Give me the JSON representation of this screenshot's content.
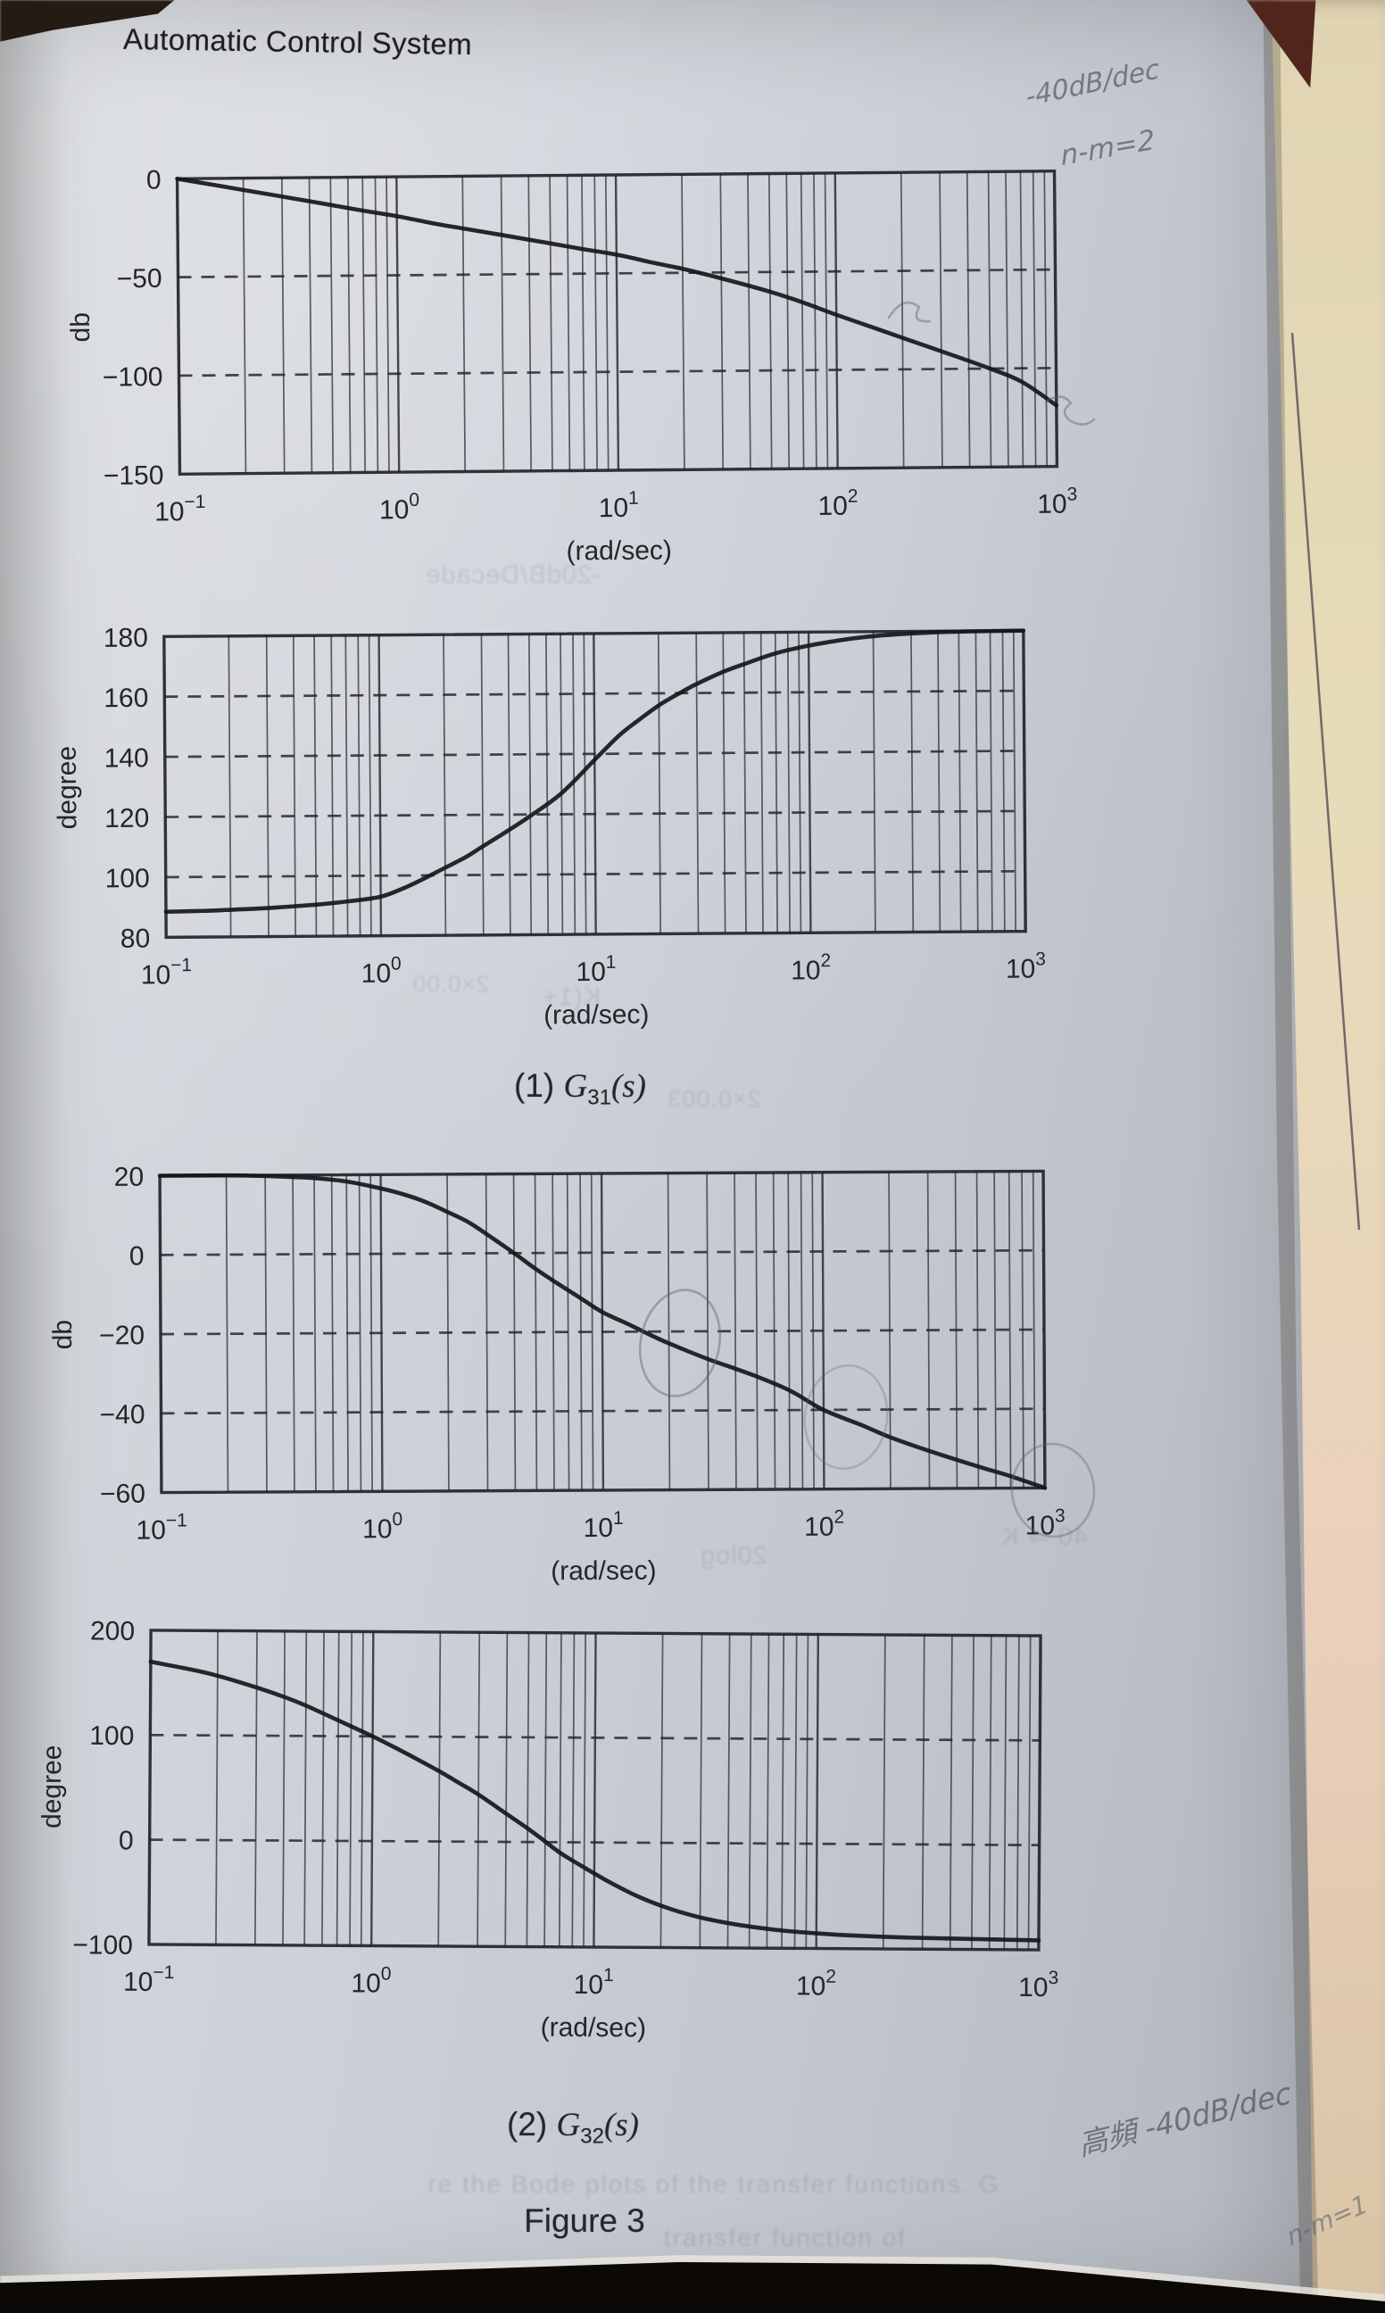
{
  "page": {
    "header": "Automatic Control System",
    "figure_label": "Figure 3",
    "captions": [
      {
        "prefix": "(1) ",
        "symbol": "G",
        "subscript": "31",
        "suffix": "(s)"
      },
      {
        "prefix": "(2) ",
        "symbol": "G",
        "subscript": "32",
        "suffix": "(s)"
      }
    ]
  },
  "handwritten_annotations": [
    {
      "text": "-40dB/dec"
    },
    {
      "text": "n-m=2"
    },
    {
      "text": "高頻 -40dB/dec"
    },
    {
      "text": "n-m=1"
    }
  ],
  "bleed_through_texts": [
    {
      "text": "-20dB/Decade"
    },
    {
      "text": "K(1+"
    },
    {
      "text": "2×0.00"
    },
    {
      "text": "2×0.003"
    },
    {
      "text": "20log"
    },
    {
      "text": "40 ⇒ K"
    },
    {
      "text": "re the Bode plots of the transfer functions. G"
    },
    {
      "text": "transfer function of"
    }
  ],
  "chart_data": [
    {
      "id": "g31-magnitude",
      "type": "line",
      "title": "",
      "xlabel": "(rad/sec)",
      "ylabel": "db",
      "x_scale": "log",
      "x_range": [
        0.1,
        1000
      ],
      "x_tick_exponents": [
        -1,
        0,
        1,
        2,
        3
      ],
      "y_range": [
        -150,
        0
      ],
      "y_ticks": [
        0,
        -50,
        -100,
        -150
      ],
      "grid": "semilog vertical lines; dashed horizontal lines at major ticks; legend off",
      "series": [
        {
          "name": "G31 magnitude (db)",
          "points": [
            [
              0.1,
              0
            ],
            [
              0.15,
              -3.5
            ],
            [
              0.2,
              -6
            ],
            [
              0.3,
              -9.5
            ],
            [
              0.5,
              -14
            ],
            [
              0.7,
              -17
            ],
            [
              1,
              -20
            ],
            [
              1.5,
              -24
            ],
            [
              2,
              -26.5
            ],
            [
              3,
              -30
            ],
            [
              5,
              -34.5
            ],
            [
              7,
              -37.5
            ],
            [
              10,
              -40.5
            ],
            [
              15,
              -45
            ],
            [
              20,
              -48
            ],
            [
              30,
              -53
            ],
            [
              50,
              -60
            ],
            [
              70,
              -65.5
            ],
            [
              100,
              -72
            ],
            [
              150,
              -79
            ],
            [
              200,
              -84
            ],
            [
              300,
              -91
            ],
            [
              500,
              -100
            ],
            [
              700,
              -107
            ],
            [
              1000,
              -119
            ]
          ]
        }
      ]
    },
    {
      "id": "g31-phase",
      "type": "line",
      "title": "",
      "xlabel": "(rad/sec)",
      "ylabel": "degree",
      "x_scale": "log",
      "x_range": [
        0.1,
        1000
      ],
      "x_tick_exponents": [
        -1,
        0,
        1,
        2,
        3
      ],
      "y_range": [
        80,
        180
      ],
      "y_ticks": [
        180,
        160,
        140,
        120,
        100,
        80
      ],
      "grid": "semilog vertical lines; dashed horizontal lines at major ticks; legend off",
      "series": [
        {
          "name": "G31 phase (degree)",
          "points": [
            [
              0.1,
              88.5
            ],
            [
              0.15,
              88.7
            ],
            [
              0.2,
              89
            ],
            [
              0.3,
              89.5
            ],
            [
              0.5,
              90.5
            ],
            [
              0.7,
              91.5
            ],
            [
              1,
              93
            ],
            [
              1.3,
              96
            ],
            [
              1.6,
              99
            ],
            [
              2,
              102.5
            ],
            [
              2.5,
              106
            ],
            [
              3,
              109.5
            ],
            [
              4,
              115
            ],
            [
              5,
              119.5
            ],
            [
              7,
              127
            ],
            [
              10,
              138
            ],
            [
              13,
              146
            ],
            [
              16,
              151
            ],
            [
              20,
              156
            ],
            [
              25,
              160
            ],
            [
              30,
              163
            ],
            [
              40,
              167
            ],
            [
              50,
              169.5
            ],
            [
              70,
              173
            ],
            [
              100,
              175.5
            ],
            [
              150,
              177.5
            ],
            [
              200,
              178.5
            ],
            [
              300,
              179.3
            ],
            [
              500,
              179.8
            ],
            [
              1000,
              180
            ]
          ]
        }
      ]
    },
    {
      "id": "g32-magnitude",
      "type": "line",
      "title": "",
      "xlabel": "(rad/sec)",
      "ylabel": "db",
      "x_scale": "log",
      "x_range": [
        0.1,
        1000
      ],
      "x_tick_exponents": [
        -1,
        0,
        1,
        2,
        3
      ],
      "y_range": [
        -60,
        20
      ],
      "y_ticks": [
        20,
        0,
        -20,
        -40,
        -60
      ],
      "grid": "semilog vertical lines; dashed horizontal lines at major ticks; legend off",
      "series": [
        {
          "name": "G32 magnitude (db)",
          "points": [
            [
              0.1,
              20
            ],
            [
              0.2,
              20
            ],
            [
              0.3,
              19.8
            ],
            [
              0.4,
              19.5
            ],
            [
              0.5,
              19.2
            ],
            [
              0.7,
              18.3
            ],
            [
              1,
              16.5
            ],
            [
              1.3,
              14.8
            ],
            [
              1.6,
              13
            ],
            [
              2,
              10.5
            ],
            [
              2.5,
              7.8
            ],
            [
              3.2,
              3.8
            ],
            [
              4,
              0
            ],
            [
              5,
              -4
            ],
            [
              6,
              -7
            ],
            [
              8,
              -11.5
            ],
            [
              10,
              -15
            ],
            [
              13,
              -18
            ],
            [
              16,
              -20.5
            ],
            [
              20,
              -23
            ],
            [
              30,
              -27
            ],
            [
              40,
              -29.5
            ],
            [
              50,
              -31.5
            ],
            [
              70,
              -35
            ],
            [
              100,
              -40
            ],
            [
              150,
              -44
            ],
            [
              200,
              -47
            ],
            [
              300,
              -50.5
            ],
            [
              500,
              -54.5
            ],
            [
              700,
              -57
            ],
            [
              1000,
              -60
            ]
          ]
        }
      ]
    },
    {
      "id": "g32-phase",
      "type": "line",
      "title": "",
      "xlabel": "(rad/sec)",
      "ylabel": "degree",
      "x_scale": "log",
      "x_range": [
        0.1,
        1000
      ],
      "x_tick_exponents": [
        -1,
        0,
        1,
        2,
        3
      ],
      "y_range": [
        -100,
        200
      ],
      "y_ticks": [
        200,
        100,
        0,
        -100
      ],
      "grid": "semilog vertical lines; dashed horizontal lines at major ticks; legend off",
      "series": [
        {
          "name": "G32 phase (degree)",
          "points": [
            [
              0.1,
              170
            ],
            [
              0.15,
              163
            ],
            [
              0.2,
              157
            ],
            [
              0.3,
              146
            ],
            [
              0.4,
              137
            ],
            [
              0.5,
              129
            ],
            [
              0.7,
              115
            ],
            [
              1,
              100
            ],
            [
              1.3,
              88
            ],
            [
              1.6,
              78
            ],
            [
              2,
              67
            ],
            [
              2.5,
              55
            ],
            [
              3,
              45
            ],
            [
              4,
              27
            ],
            [
              5,
              13
            ],
            [
              5.8,
              3
            ],
            [
              7,
              -10
            ],
            [
              9,
              -24
            ],
            [
              12,
              -39
            ],
            [
              16,
              -52
            ],
            [
              22,
              -63
            ],
            [
              30,
              -71
            ],
            [
              45,
              -78
            ],
            [
              70,
              -83
            ],
            [
              100,
              -85.5
            ],
            [
              150,
              -87.5
            ],
            [
              250,
              -89
            ],
            [
              500,
              -90
            ],
            [
              1000,
              -91
            ]
          ]
        }
      ]
    }
  ]
}
